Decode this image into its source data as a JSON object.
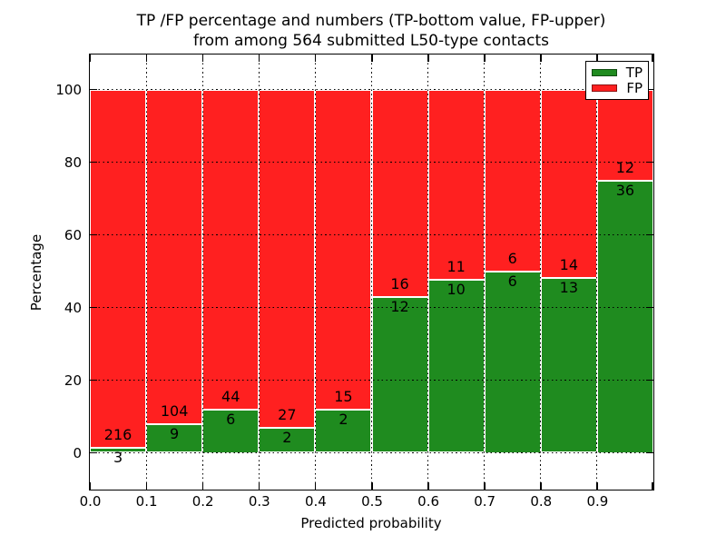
{
  "figure": {
    "title_line1": "TP /FP percentage and numbers (TP-bottom value, FP-upper)",
    "title_line2": "from among 564 submitted L50-type contacts"
  },
  "chart_data": {
    "type": "bar",
    "stacked": true,
    "title": "TP /FP percentage and numbers (TP-bottom value, FP-upper)\nfrom among 564 submitted L50-type contacts",
    "xlabel": "Predicted probability",
    "ylabel": "Percentage",
    "xlim": [
      0.0,
      1.0
    ],
    "ylim": [
      -10,
      110
    ],
    "grid": true,
    "xticks": [
      "0.0",
      "0.1",
      "0.2",
      "0.3",
      "0.4",
      "0.5",
      "0.6",
      "0.7",
      "0.8",
      "0.9"
    ],
    "yticks": [
      0,
      20,
      40,
      60,
      80,
      100
    ],
    "bin_width": 0.1,
    "categories": [
      "0.0-0.1",
      "0.1-0.2",
      "0.2-0.3",
      "0.3-0.4",
      "0.4-0.5",
      "0.5-0.6",
      "0.6-0.7",
      "0.7-0.8",
      "0.8-0.9",
      "0.9-1.0"
    ],
    "total_contacts": 564,
    "series": [
      {
        "name": "TP",
        "color": "#1f8b1f",
        "counts": [
          3,
          9,
          6,
          2,
          2,
          12,
          10,
          6,
          13,
          36
        ]
      },
      {
        "name": "FP",
        "color": "#ff2020",
        "counts": [
          216,
          104,
          44,
          27,
          15,
          16,
          11,
          6,
          14,
          12
        ]
      }
    ],
    "tp_percent_of_bin": [
      1.37,
      7.96,
      12.0,
      6.9,
      11.76,
      42.86,
      47.62,
      50.0,
      48.15,
      75.0
    ],
    "bars_sum_to_percent": 100,
    "legend": {
      "position": "upper right",
      "entries": [
        "TP",
        "FP"
      ]
    }
  },
  "colors": {
    "tp_green": "#1f8b1f",
    "fp_red": "#ff2020",
    "grid": "#000000",
    "background": "#ffffff"
  }
}
